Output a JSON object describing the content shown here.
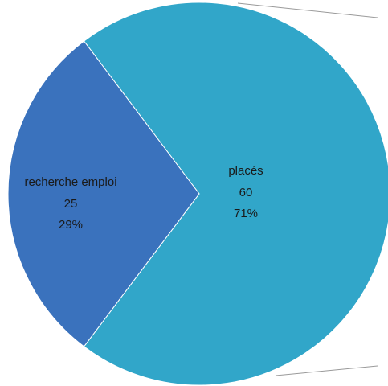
{
  "chart_data": {
    "type": "pie",
    "categories": [
      "placés",
      "recherche emploi"
    ],
    "values": [
      60,
      25
    ],
    "percent_labels": [
      "71%",
      "29%"
    ],
    "colors": [
      "#31a6c9",
      "#3a72bd"
    ]
  }
}
